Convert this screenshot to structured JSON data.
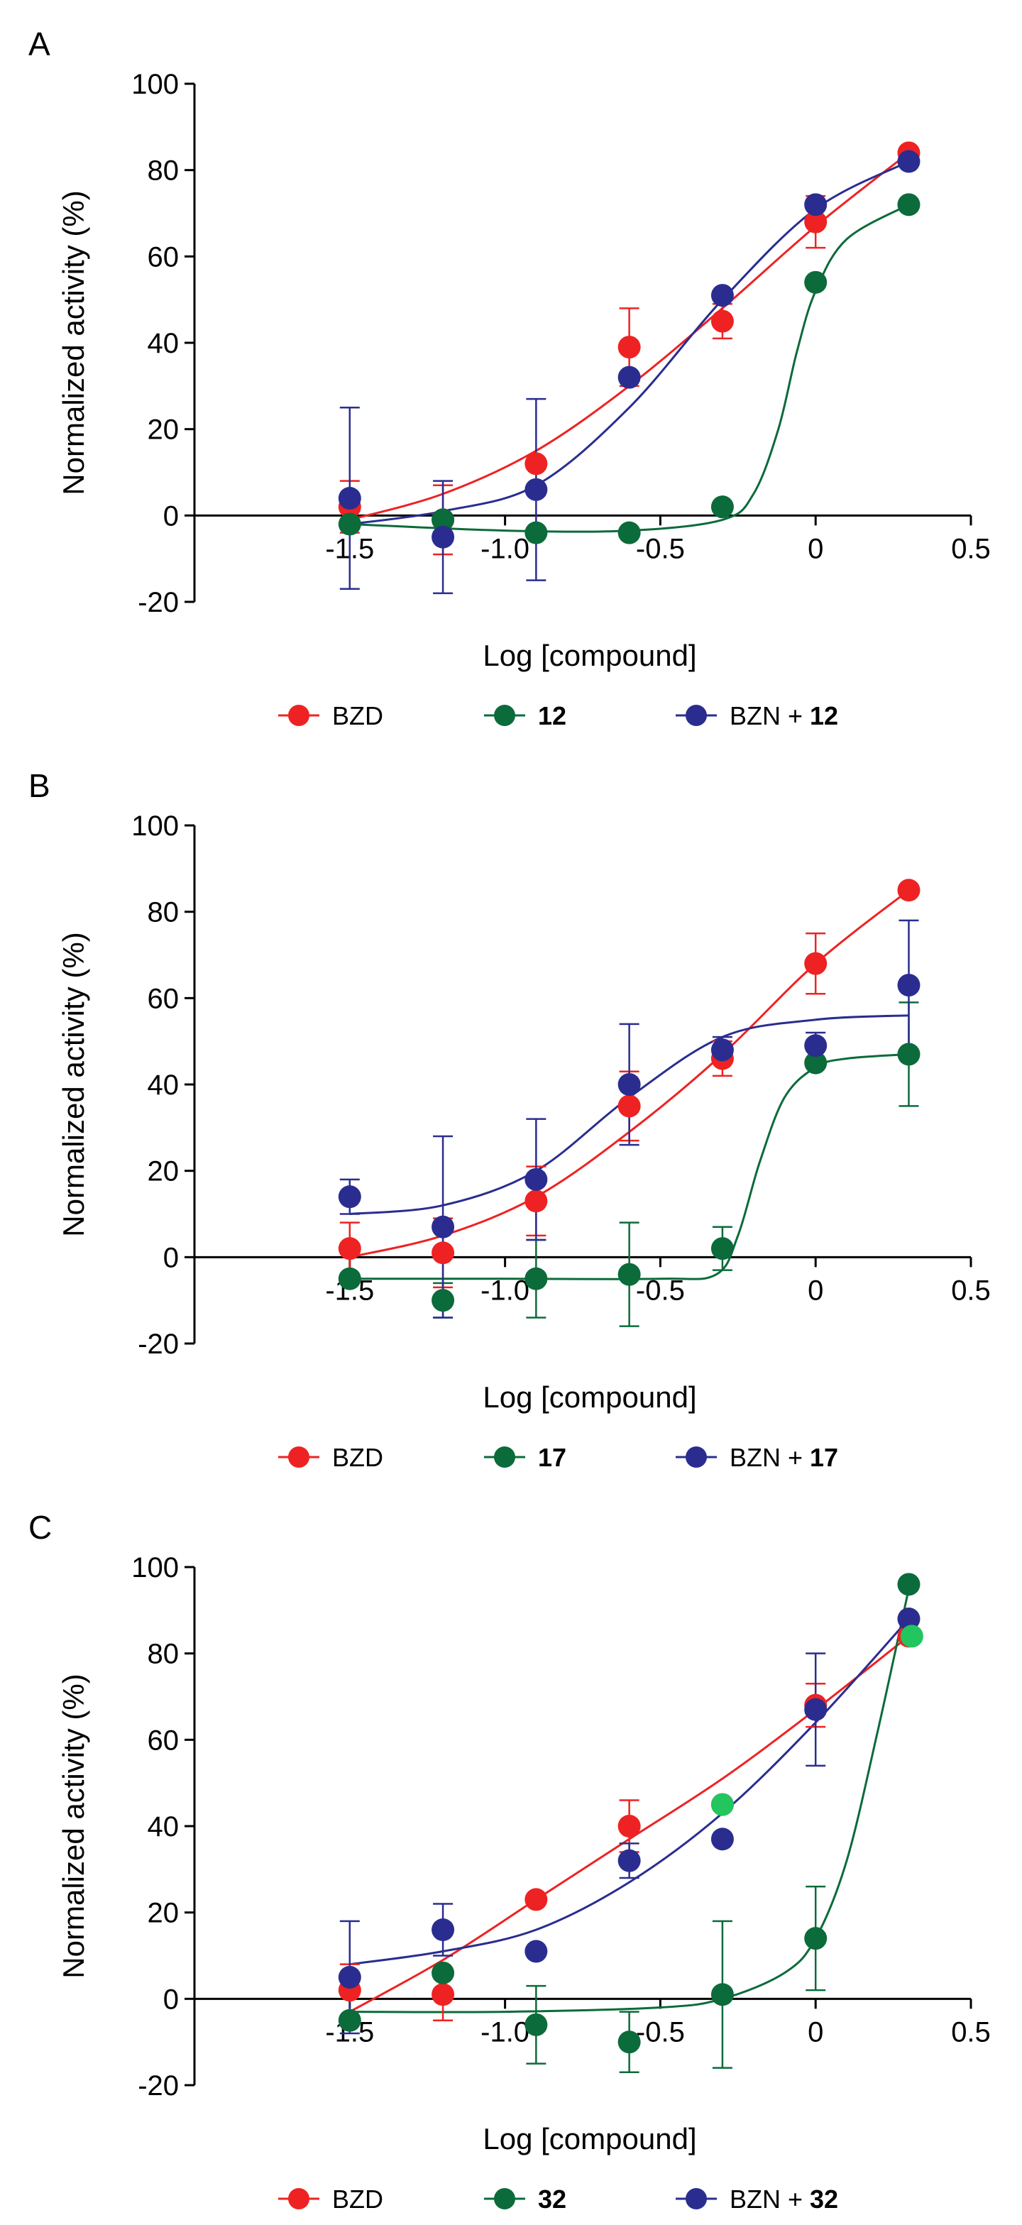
{
  "colors": {
    "BZD": "#ee2222",
    "cmp": "#0b6b3a",
    "BZN": "#2a2d8f",
    "highlight": "#22c55e",
    "axis": "#000000"
  },
  "chart_data": [
    {
      "type": "scatter",
      "panel_label": "A",
      "xlabel": "Log [compound]",
      "ylabel": "Normalized activity (%)",
      "xlim": [
        -2.0,
        0.5
      ],
      "ylim": [
        -20,
        100
      ],
      "xticks": [
        -1.5,
        -1.0,
        -0.5,
        0,
        0.5
      ],
      "xtick_labels": [
        "-1.5",
        "-1.0",
        "-0.5",
        "0",
        "0.5"
      ],
      "yticks": [
        -20,
        0,
        20,
        40,
        60,
        80,
        100
      ],
      "ytick_labels": [
        "-20",
        "0",
        "20",
        "40",
        "60",
        "80",
        "100"
      ],
      "legend": [
        {
          "key": "BZD",
          "text": "BZD",
          "bold": ""
        },
        {
          "key": "cmp",
          "text": "",
          "bold": "12"
        },
        {
          "key": "BZN",
          "text": "BZN + ",
          "bold": "12"
        }
      ],
      "series": [
        {
          "key": "BZD",
          "name": "BZD",
          "x": [
            -1.5,
            -1.2,
            -0.9,
            -0.6,
            -0.3,
            0,
            0.3
          ],
          "y": [
            2,
            -1,
            12,
            39,
            45,
            68,
            84
          ],
          "err": [
            6,
            8,
            0,
            9,
            4,
            6,
            0
          ],
          "curve": {
            "x": [
              -1.5,
              -1.2,
              -0.9,
              -0.6,
              -0.3,
              0,
              0.3
            ],
            "y": [
              -1,
              5,
              15,
              30,
              48,
              67,
              84
            ]
          }
        },
        {
          "key": "cmp",
          "name": "12",
          "x": [
            -1.5,
            -1.2,
            -0.9,
            -0.6,
            -0.3,
            0,
            0.3
          ],
          "y": [
            -2,
            -1,
            -4,
            -4,
            2,
            54,
            72
          ],
          "err": [
            0,
            0,
            0,
            0,
            0,
            0,
            0
          ],
          "curve": {
            "x": [
              -1.5,
              -1.0,
              -0.6,
              -0.3,
              -0.2,
              -0.12,
              -0.06,
              0,
              0.1,
              0.3
            ],
            "y": [
              -2,
              -3.5,
              -3.5,
              -1,
              5,
              20,
              38,
              52,
              64,
              72
            ]
          }
        },
        {
          "key": "BZN",
          "name": "BZN + 12",
          "x": [
            -1.5,
            -1.2,
            -0.9,
            -0.6,
            -0.3,
            0,
            0.3
          ],
          "y": [
            4,
            -5,
            6,
            32,
            51,
            72,
            82
          ],
          "err": [
            21,
            13,
            21,
            0,
            0,
            0,
            0
          ],
          "curve": {
            "x": [
              -1.5,
              -1.2,
              -0.9,
              -0.6,
              -0.3,
              0,
              0.3
            ],
            "y": [
              -2,
              1,
              7,
              25,
              50,
              71,
              82
            ]
          }
        }
      ]
    },
    {
      "type": "scatter",
      "panel_label": "B",
      "xlabel": "Log [compound]",
      "ylabel": "Normalized activity (%)",
      "xlim": [
        -2.0,
        0.5
      ],
      "ylim": [
        -20,
        100
      ],
      "xticks": [
        -1.5,
        -1.0,
        -0.5,
        0,
        0.5
      ],
      "xtick_labels": [
        "-1.5",
        "-1.0",
        "-0.5",
        "0",
        "0.5"
      ],
      "yticks": [
        -20,
        0,
        20,
        40,
        60,
        80,
        100
      ],
      "ytick_labels": [
        "-20",
        "0",
        "20",
        "40",
        "60",
        "80",
        "100"
      ],
      "legend": [
        {
          "key": "BZD",
          "text": "BZD",
          "bold": ""
        },
        {
          "key": "cmp",
          "text": "",
          "bold": "17"
        },
        {
          "key": "BZN",
          "text": "BZN + ",
          "bold": "17"
        }
      ],
      "series": [
        {
          "key": "BZD",
          "name": "BZD",
          "x": [
            -1.5,
            -1.2,
            -0.9,
            -0.6,
            -0.3,
            0,
            0.3
          ],
          "y": [
            2,
            1,
            13,
            35,
            46,
            68,
            85
          ],
          "err": [
            6,
            8,
            8,
            8,
            4,
            7,
            0
          ],
          "curve": {
            "x": [
              -1.5,
              -1.2,
              -0.9,
              -0.6,
              -0.3,
              0,
              0.3
            ],
            "y": [
              0,
              5,
              14,
              29,
              47,
              68,
              85
            ]
          }
        },
        {
          "key": "cmp",
          "name": "17",
          "x": [
            -1.5,
            -1.2,
            -0.9,
            -0.6,
            -0.3,
            0,
            0.3
          ],
          "y": [
            -5,
            -10,
            -5,
            -4,
            2,
            45,
            47
          ],
          "err": [
            0,
            4,
            9,
            12,
            5,
            0,
            12
          ],
          "curve": {
            "x": [
              -1.5,
              -1.0,
              -0.5,
              -0.32,
              -0.25,
              -0.18,
              -0.1,
              0,
              0.1,
              0.3
            ],
            "y": [
              -5,
              -5,
              -5,
              -4,
              5,
              22,
              37,
              44,
              46,
              47
            ]
          }
        },
        {
          "key": "BZN",
          "name": "BZN + 17",
          "x": [
            -1.5,
            -1.2,
            -0.9,
            -0.6,
            -0.3,
            0,
            0.3
          ],
          "y": [
            14,
            7,
            18,
            40,
            48,
            49,
            63
          ],
          "err": [
            4,
            21,
            14,
            14,
            3,
            3,
            15
          ],
          "curve": {
            "x": [
              -1.5,
              -1.2,
              -0.9,
              -0.6,
              -0.3,
              0,
              0.3
            ],
            "y": [
              10,
              12,
              20,
              37,
              51,
              55,
              56
            ]
          }
        }
      ]
    },
    {
      "type": "scatter",
      "panel_label": "C",
      "xlabel": "Log [compound]",
      "ylabel": "Normalized activity (%)",
      "xlim": [
        -2.0,
        0.5
      ],
      "ylim": [
        -20,
        100
      ],
      "xticks": [
        -1.5,
        -1.0,
        -0.5,
        0,
        0.5
      ],
      "xtick_labels": [
        "-1.5",
        "-1.0",
        "-0.5",
        "0",
        "0.5"
      ],
      "yticks": [
        -20,
        0,
        20,
        40,
        60,
        80,
        100
      ],
      "ytick_labels": [
        "-20",
        "0",
        "20",
        "40",
        "60",
        "80",
        "100"
      ],
      "legend": [
        {
          "key": "BZD",
          "text": "BZD",
          "bold": ""
        },
        {
          "key": "cmp",
          "text": "",
          "bold": "32"
        },
        {
          "key": "BZN",
          "text": "BZN + ",
          "bold": "32"
        }
      ],
      "series": [
        {
          "key": "BZD",
          "name": "BZD",
          "x": [
            -1.5,
            -1.2,
            -0.9,
            -0.6,
            -0.3,
            0,
            0.3
          ],
          "y": [
            2,
            1,
            23,
            40,
            45,
            68,
            84
          ],
          "err": [
            6,
            6,
            0,
            6,
            0,
            5,
            0
          ],
          "curve": {
            "x": [
              -1.5,
              -1.2,
              -0.9,
              -0.6,
              -0.3,
              0,
              0.3
            ],
            "y": [
              -3,
              9,
              23,
              37,
              51,
              67,
              84
            ]
          }
        },
        {
          "key": "cmp",
          "name": "32",
          "x": [
            -1.5,
            -1.2,
            -0.9,
            -0.6,
            -0.3,
            0,
            0.3
          ],
          "y": [
            -5,
            6,
            -6,
            -10,
            1,
            14,
            96
          ],
          "err": [
            0,
            0,
            9,
            7,
            17,
            12,
            0
          ],
          "curve": {
            "x": [
              -1.5,
              -1.0,
              -0.5,
              -0.3,
              -0.1,
              0,
              0.1,
              0.2,
              0.3
            ],
            "y": [
              -3,
              -3,
              -2,
              0,
              6,
              14,
              32,
              62,
              95
            ]
          }
        },
        {
          "key": "BZN",
          "name": "BZN + 32",
          "x": [
            -1.5,
            -1.2,
            -0.9,
            -0.6,
            -0.3,
            0,
            0.3
          ],
          "y": [
            5,
            16,
            11,
            32,
            37,
            67,
            88
          ],
          "err": [
            13,
            6,
            0,
            4,
            0,
            13,
            0
          ],
          "curve": {
            "x": [
              -1.5,
              -1.2,
              -0.9,
              -0.6,
              -0.3,
              0,
              0.3
            ],
            "y": [
              8,
              11,
              16,
              27,
              43,
              64,
              88
            ]
          }
        }
      ],
      "extra_points": [
        {
          "key": "highlight",
          "x": -0.3,
          "y": 45
        },
        {
          "key": "highlight",
          "x": 0.31,
          "y": 84
        }
      ]
    }
  ]
}
